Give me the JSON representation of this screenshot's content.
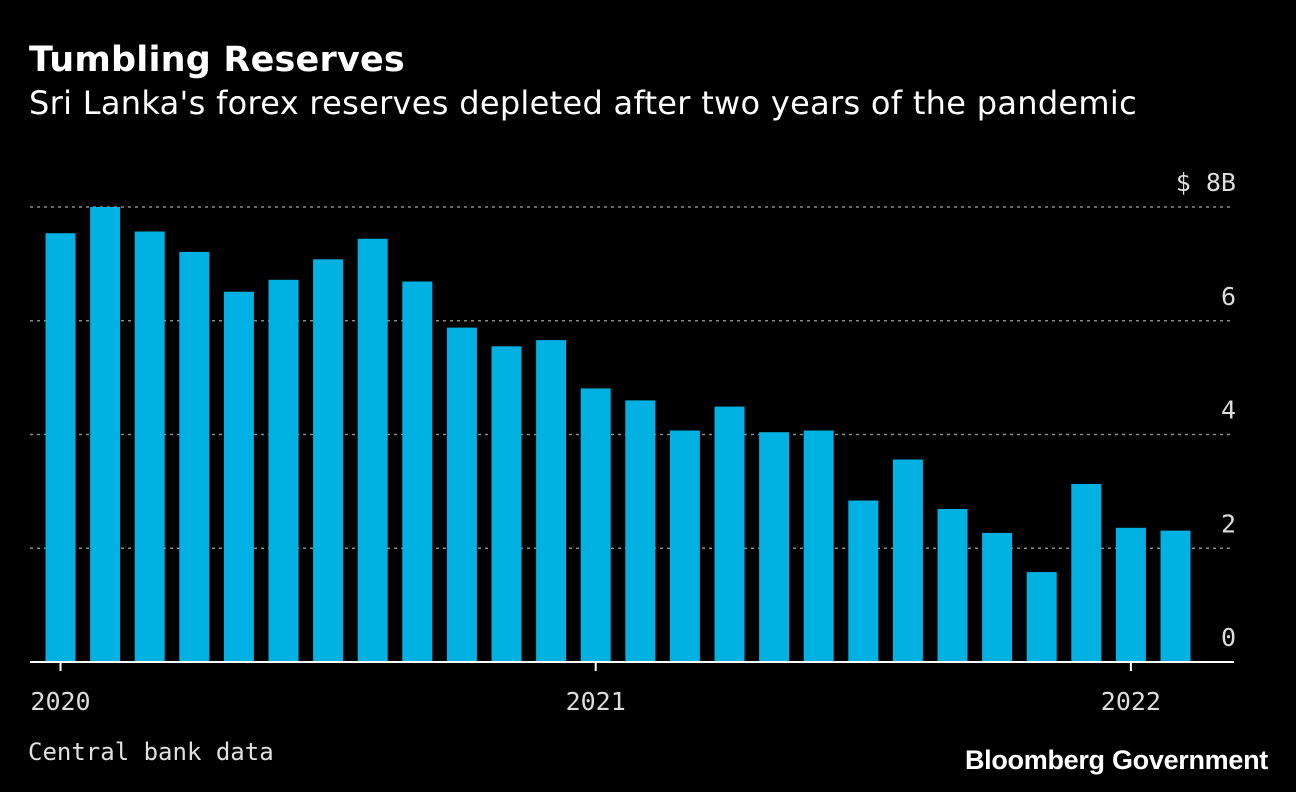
{
  "header": {
    "title": "Tumbling Reserves",
    "subtitle": "Sri Lanka's forex reserves depleted after two years of the pandemic"
  },
  "footer": {
    "source": "Central bank data",
    "brand": "Bloomberg Government"
  },
  "colors": {
    "bar": "#00b1e1",
    "background": "#000000",
    "grid": "#8a8a8a",
    "axis": "#ffffff",
    "text": "#ffffff"
  },
  "chart_data": {
    "type": "bar",
    "title": "Tumbling Reserves",
    "subtitle": "Sri Lanka's forex reserves depleted after two years of the pandemic",
    "xlabel": "",
    "ylabel": "",
    "unit_label": "$ 8B",
    "ylim": [
      0,
      8
    ],
    "y_ticks": [
      0,
      2,
      4,
      6,
      8
    ],
    "y_tick_labels": [
      "0",
      "2",
      "4",
      "6",
      "$ 8B"
    ],
    "grid": true,
    "x_tick_labels": [
      {
        "label": "2020",
        "index": 0
      },
      {
        "label": "2021",
        "index": 12
      },
      {
        "label": "2022",
        "index": 24
      }
    ],
    "categories": [
      "2020-01",
      "2020-02",
      "2020-03",
      "2020-04",
      "2020-05",
      "2020-06",
      "2020-07",
      "2020-08",
      "2020-09",
      "2020-10",
      "2020-11",
      "2020-12",
      "2021-01",
      "2021-02",
      "2021-03",
      "2021-04",
      "2021-05",
      "2021-06",
      "2021-07",
      "2021-08",
      "2021-09",
      "2021-10",
      "2021-11",
      "2021-12",
      "2022-01",
      "2022-02"
    ],
    "values": [
      7.54,
      8.0,
      7.57,
      7.21,
      6.51,
      6.72,
      7.08,
      7.44,
      6.69,
      5.88,
      5.55,
      5.66,
      4.81,
      4.6,
      4.07,
      4.49,
      4.04,
      4.07,
      2.84,
      3.56,
      2.69,
      2.27,
      1.58,
      3.13,
      2.36,
      2.31
    ]
  }
}
